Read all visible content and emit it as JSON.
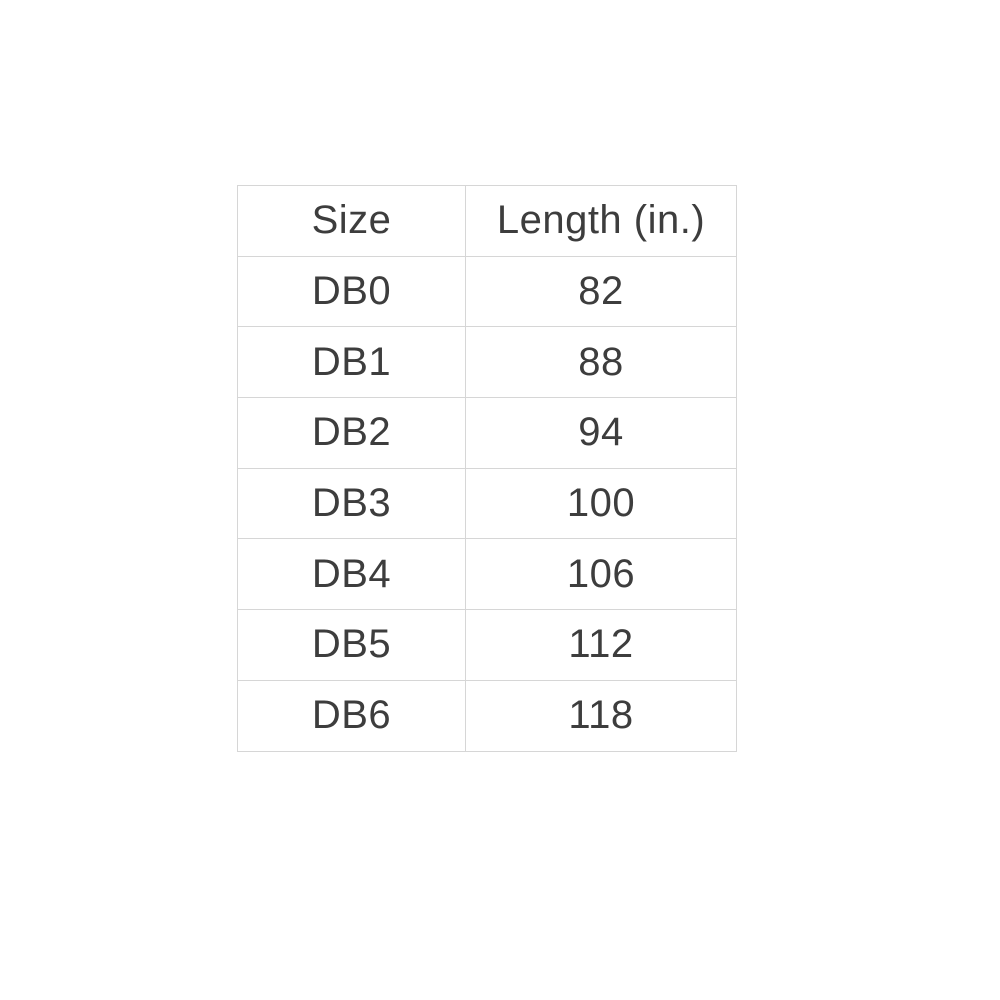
{
  "colors": {
    "background": "#ffffff",
    "border": "#d6d6d6",
    "text": "#3d3d3d"
  },
  "table": {
    "columns": [
      {
        "label": "Size"
      },
      {
        "label": "Length (in.)"
      }
    ],
    "rows": [
      {
        "size": "DB0",
        "length": "82"
      },
      {
        "size": "DB1",
        "length": "88"
      },
      {
        "size": "DB2",
        "length": "94"
      },
      {
        "size": "DB3",
        "length": "100"
      },
      {
        "size": "DB4",
        "length": "106"
      },
      {
        "size": "DB5",
        "length": "112"
      },
      {
        "size": "DB6",
        "length": "118"
      }
    ]
  },
  "chart_data": {
    "type": "table",
    "title": "",
    "columns": [
      "Size",
      "Length (in.)"
    ],
    "categories": [
      "DB0",
      "DB1",
      "DB2",
      "DB3",
      "DB4",
      "DB5",
      "DB6"
    ],
    "values": [
      82,
      88,
      94,
      100,
      106,
      112,
      118
    ],
    "xlabel": "Size",
    "ylabel": "Length (in.)"
  }
}
